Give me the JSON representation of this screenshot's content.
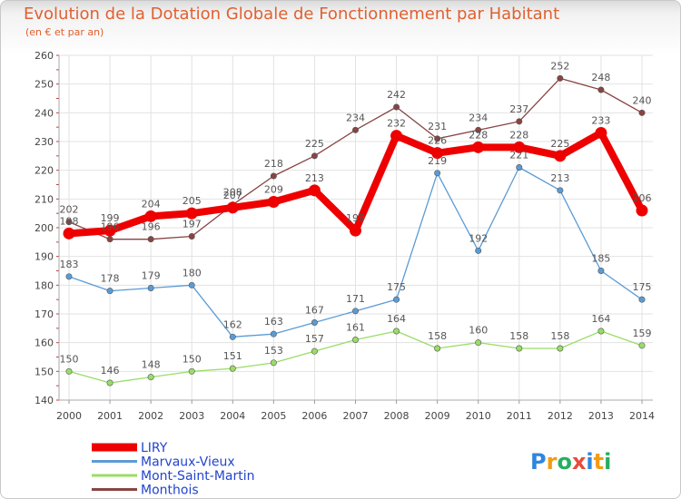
{
  "title": "Evolution de la Dotation Globale de Fonctionnement par Habitant",
  "subtitle": "(en € et par an)",
  "logo": "Proxiti",
  "chart_data": {
    "type": "line",
    "x": [
      "2000",
      "2001",
      "2002",
      "2003",
      "2004",
      "2005",
      "2006",
      "2007",
      "2008",
      "2009",
      "2010",
      "2011",
      "2012",
      "2013",
      "2014"
    ],
    "ylim": [
      140,
      260
    ],
    "yticks": [
      140,
      150,
      160,
      170,
      180,
      190,
      200,
      210,
      220,
      230,
      240,
      250,
      260
    ],
    "grid": true,
    "legend_position": "bottom-left",
    "series": [
      {
        "name": "LIRY",
        "color": "#ee0000",
        "values": [
          198,
          199,
          204,
          205,
          207,
          209,
          213,
          199,
          232,
          226,
          228,
          228,
          225,
          233,
          206
        ]
      },
      {
        "name": "Marvaux-Vieux",
        "color": "#5b9bd5",
        "values": [
          183,
          178,
          179,
          180,
          162,
          163,
          167,
          171,
          175,
          219,
          192,
          221,
          213,
          185,
          175
        ]
      },
      {
        "name": "Mont-Saint-Martin",
        "color": "#99dd66",
        "values": [
          150,
          146,
          148,
          150,
          151,
          153,
          157,
          161,
          164,
          158,
          160,
          158,
          158,
          164,
          159
        ]
      },
      {
        "name": "Monthois",
        "color": "#884444",
        "values": [
          202,
          196,
          196,
          197,
          208,
          218,
          225,
          234,
          242,
          231,
          234,
          237,
          252,
          248,
          240
        ]
      }
    ]
  }
}
